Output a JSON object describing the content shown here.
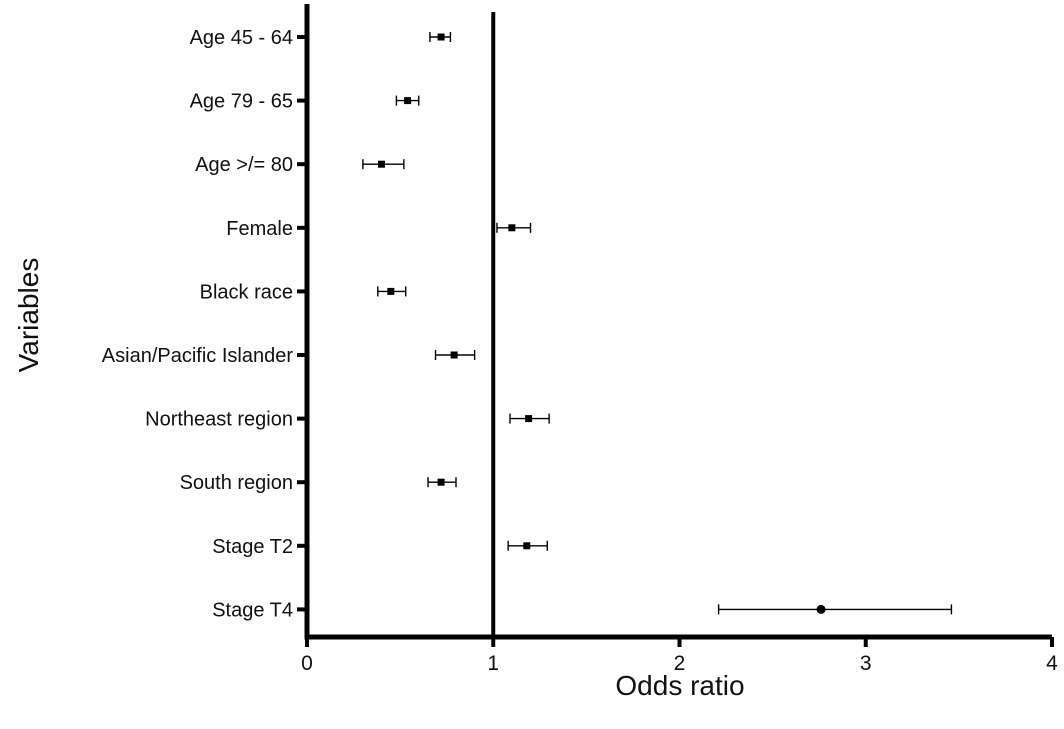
{
  "chart_data": {
    "type": "forest",
    "xlabel": "Odds ratio",
    "ylabel": "Variables",
    "xlim": [
      0,
      4
    ],
    "xticks": [
      0,
      1,
      2,
      3,
      4
    ],
    "reference_line": 1,
    "grid": false,
    "categories": [
      "Age 45 - 64",
      "Age 79 - 65",
      "Age >/= 80",
      "Female",
      "Black race",
      "Asian/Pacific Islander",
      "Northeast region",
      "South region",
      "Stage T2",
      "Stage T4"
    ],
    "points": [
      {
        "label": "Age 45 - 64",
        "or": 0.72,
        "lo": 0.66,
        "hi": 0.77
      },
      {
        "label": "Age 79 - 65",
        "or": 0.54,
        "lo": 0.48,
        "hi": 0.6
      },
      {
        "label": "Age >/= 80",
        "or": 0.4,
        "lo": 0.3,
        "hi": 0.52
      },
      {
        "label": "Female",
        "or": 1.1,
        "lo": 1.02,
        "hi": 1.2
      },
      {
        "label": "Black race",
        "or": 0.45,
        "lo": 0.38,
        "hi": 0.53
      },
      {
        "label": "Asian/Pacific Islander",
        "or": 0.79,
        "lo": 0.69,
        "hi": 0.9
      },
      {
        "label": "Northeast region",
        "or": 1.19,
        "lo": 1.09,
        "hi": 1.3
      },
      {
        "label": "South region",
        "or": 0.72,
        "lo": 0.65,
        "hi": 0.8
      },
      {
        "label": "Stage T2",
        "or": 1.18,
        "lo": 1.08,
        "hi": 1.29
      },
      {
        "label": "Stage T4",
        "or": 2.76,
        "lo": 2.21,
        "hi": 3.46
      }
    ]
  }
}
